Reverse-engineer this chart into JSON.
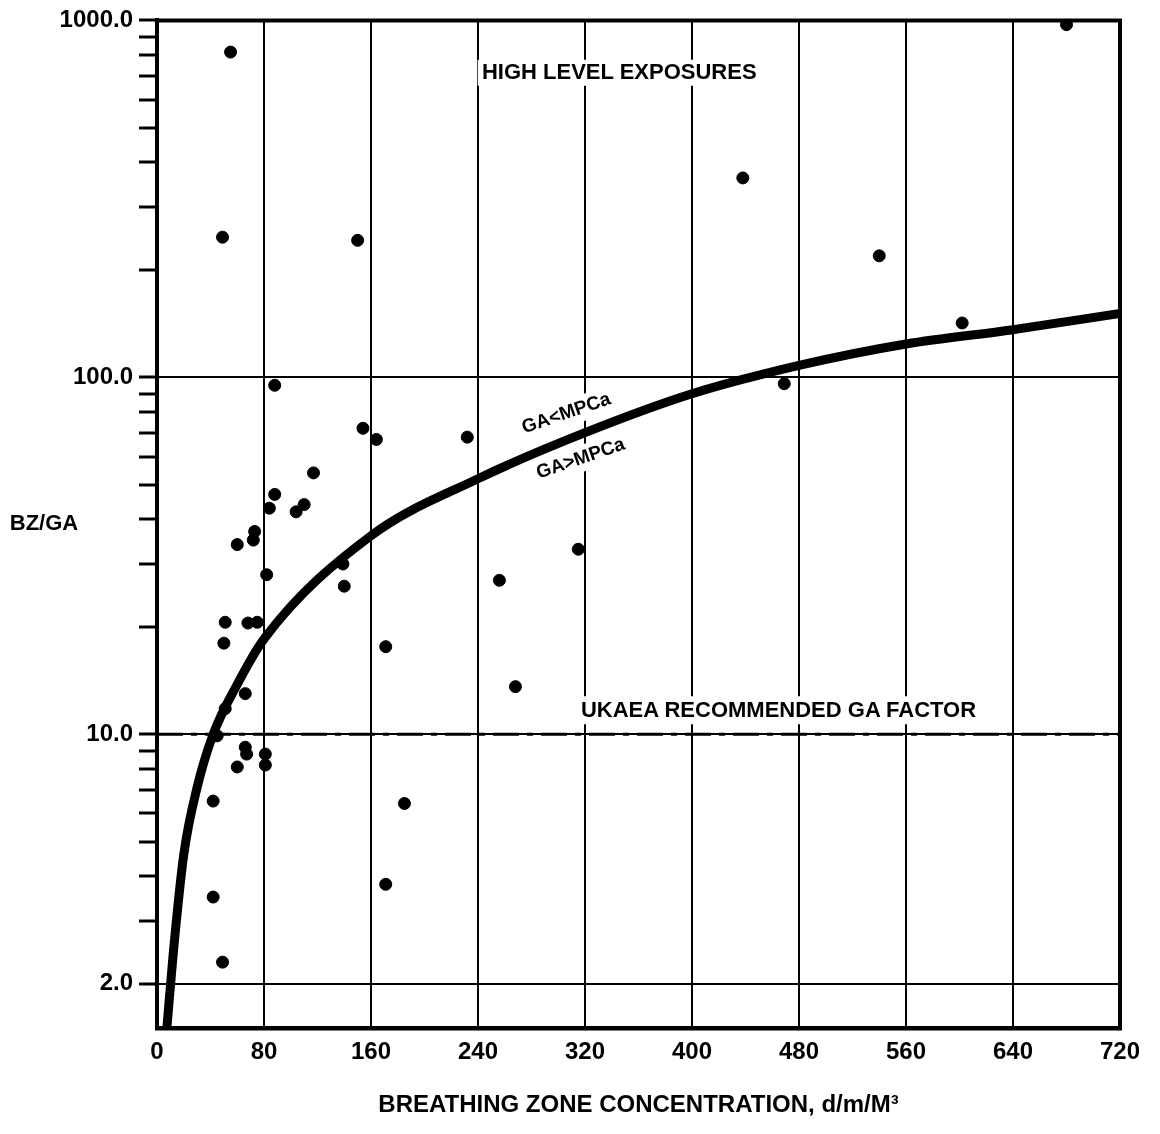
{
  "chart_data": {
    "type": "scatter",
    "xlabel": "BREATHING ZONE CONCENTRATION, d/m/M³",
    "ylabel": "BZ/GA",
    "log": "y",
    "grid": true,
    "legend": false,
    "xlim": [
      0,
      720
    ],
    "xticks": [
      0,
      80,
      160,
      240,
      320,
      400,
      480,
      560,
      640,
      720
    ],
    "ylim": [
      1.5,
      1000
    ],
    "yticks": [
      {
        "value": 2,
        "label": "2.0"
      },
      {
        "value": 3,
        "label": null
      },
      {
        "value": 4,
        "label": null
      },
      {
        "value": 5,
        "label": null
      },
      {
        "value": 6,
        "label": null
      },
      {
        "value": 7,
        "label": null
      },
      {
        "value": 8,
        "label": null
      },
      {
        "value": 9,
        "label": null
      },
      {
        "value": 10,
        "label": "10.0"
      },
      {
        "value": 20,
        "label": null
      },
      {
        "value": 30,
        "label": null
      },
      {
        "value": 40,
        "label": null
      },
      {
        "value": 50,
        "label": null
      },
      {
        "value": 60,
        "label": null
      },
      {
        "value": 70,
        "label": null
      },
      {
        "value": 80,
        "label": null
      },
      {
        "value": 90,
        "label": null
      },
      {
        "value": 100,
        "label": "100.0"
      },
      {
        "value": 200,
        "label": null
      },
      {
        "value": 300,
        "label": null
      },
      {
        "value": 400,
        "label": null
      },
      {
        "value": 500,
        "label": null
      },
      {
        "value": 600,
        "label": null
      },
      {
        "value": 700,
        "label": null
      },
      {
        "value": 800,
        "label": null
      },
      {
        "value": 900,
        "label": null
      },
      {
        "value": 1000,
        "label": "1000.0"
      }
    ],
    "series": [
      {
        "color": "#000000",
        "marker": "circle",
        "x": [
          55,
          49,
          150,
          438,
          540,
          602,
          680,
          469,
          88,
          154,
          164,
          232,
          117,
          88,
          110,
          104,
          84,
          73,
          60,
          72,
          82,
          139,
          140,
          256,
          315,
          51,
          68,
          75,
          50,
          171,
          268,
          66,
          51,
          45,
          66,
          67,
          81,
          81,
          60,
          42,
          185,
          171,
          42,
          49
        ],
        "values": [
          815,
          247,
          242,
          362,
          219,
          142,
          973,
          96,
          95,
          72,
          67,
          68,
          54,
          47,
          44,
          42,
          43,
          37,
          34,
          35,
          28,
          30,
          26,
          27,
          33,
          20.6,
          20.5,
          20.6,
          18,
          17.6,
          13.6,
          13,
          11.8,
          9.9,
          9.2,
          8.8,
          8.8,
          8.2,
          8.1,
          6.5,
          6.4,
          3.8,
          3.5,
          2.3
        ]
      },
      {
        "type": "line",
        "color": "#000000",
        "marker": "none",
        "line_style": "solid",
        "x": [
          7.5,
          12,
          20,
          30,
          42,
          60,
          80,
          160,
          240,
          320,
          400,
          480,
          560,
          640,
          720
        ],
        "values": [
          1.52,
          2.4,
          4.6,
          7.1,
          10,
          13.8,
          18.5,
          36,
          52,
          70,
          90,
          108,
          124,
          136,
          151
        ]
      }
    ],
    "ref_lines": [
      {
        "axis": "y",
        "value": 10,
        "label": "UKAEA RECOMMENDED GA FACTOR",
        "color": "#000000",
        "line_style": "dashed"
      }
    ],
    "annotations": [
      "HIGH LEVEL EXPOSURES",
      "GA<MPCa",
      "GA>MPCa"
    ]
  }
}
